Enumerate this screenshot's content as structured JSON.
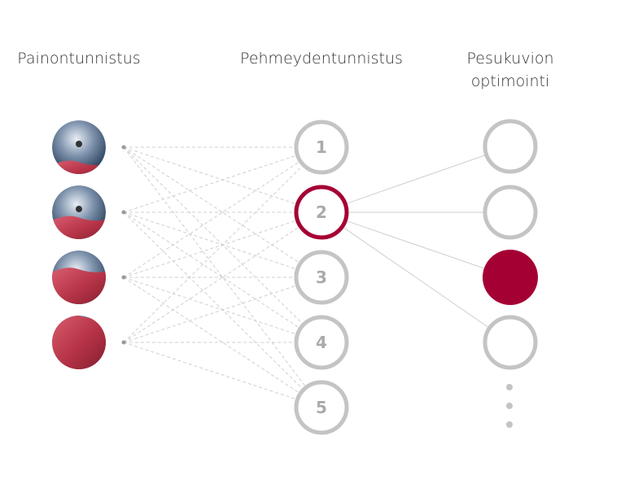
{
  "headers": {
    "col1": "Painontunnistus",
    "col2": "Pehmeydentunnistus",
    "col3_line1": "Pesukuvion",
    "col3_line2": "optimointi"
  },
  "load_levels": [
    "drum-mostly-empty",
    "drum-half-full",
    "drum-mostly-full",
    "drum-full"
  ],
  "softness_nodes": [
    "1",
    "2",
    "3",
    "4",
    "5"
  ],
  "selected_softness": "2",
  "pattern_nodes": 4,
  "selected_pattern": 3,
  "colors": {
    "accent": "#a50034",
    "node": "#c4c4c4",
    "text": "#aaaaaa"
  }
}
